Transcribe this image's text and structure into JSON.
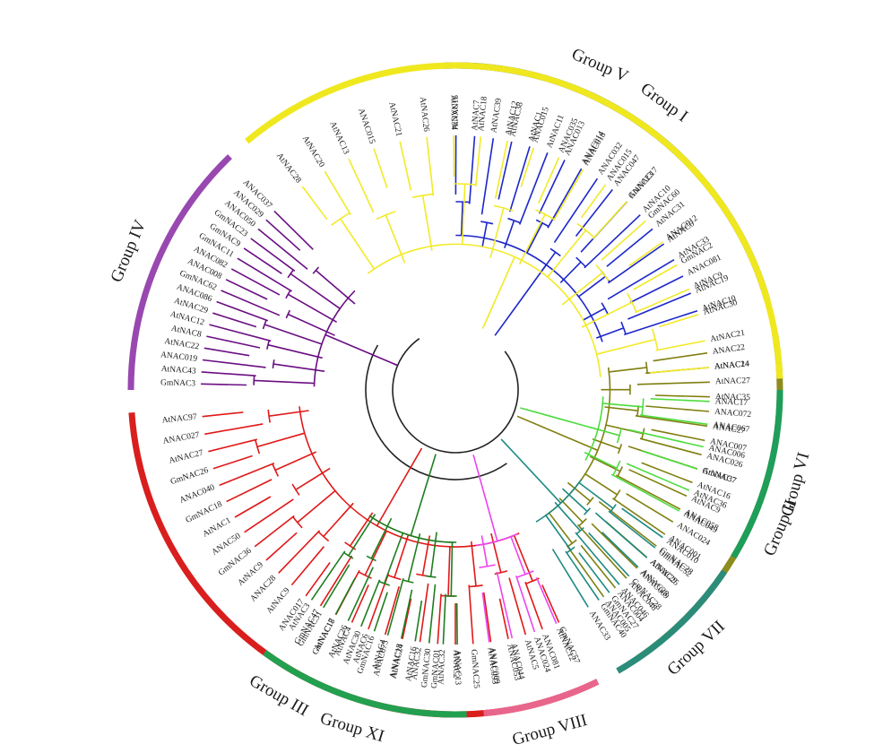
{
  "figure": {
    "groups": [
      {
        "name": "Group I",
        "color": "#3a4fc0",
        "branch": "#1d27c8",
        "leaves": [
          "AtNAC15",
          "AtNAC7",
          "AtNAC39",
          "AtNAC38",
          "AtNAC1",
          "AtNAC11",
          "ANAC013",
          "ANAC014",
          "ANAC032",
          "ANAC047",
          "ANAC23",
          "AtNAC10",
          "AtNAC31",
          "AtNAC6",
          "AtNAC33",
          "ANAC081",
          "AtNAC19",
          "AtNAC10"
        ]
      },
      {
        "name": "Group II",
        "color": "#8c8c1f",
        "branch": "#7f7f10",
        "leaves": [
          "ANAC22",
          "AtNAC24",
          "AtNAC27",
          "AtNAC35",
          "ANAC072",
          "ANAC27",
          "ANAC007",
          "ANAC026",
          "GmNAC7",
          "AtNAC16",
          "AtNAC9",
          "ANAC058",
          "ANAC024",
          "ANAC001",
          "GmNAC28",
          "ANAC29",
          "ANAC069",
          "ANAC048",
          "ANAC004",
          "ANAC005"
        ]
      },
      {
        "name": "Group III",
        "color": "#d91e1e",
        "branch": "#e01818",
        "leaves": [
          "GmNAC57",
          "ANAC081",
          "AtNAC5",
          "ANAC053",
          "ANAC009",
          "GmNAC25",
          "ANAC2",
          "GmNAC01",
          "ANAC32",
          "AtNAC24",
          "AtNAC4",
          "AtNAC6",
          "AtNAC4",
          "GmNAC18",
          "GmNAC47",
          "ANAC017",
          "AtNAC9",
          "ANAC28",
          "AtNAC9",
          "GmNAC36",
          "ANAC50",
          "AtNAC1",
          "GmNAC18",
          "ANAC040",
          "GmNAC26",
          "AtNAC27",
          "ANAC027",
          "AtNAC97"
        ]
      },
      {
        "name": "Group IV",
        "color": "#9948b0",
        "branch": "#6a0f82",
        "leaves": [
          "GmNAC3",
          "AtNAC43",
          "ANAC019",
          "AtNAC22",
          "AtNAC8",
          "AtNAC12",
          "AtNAC29",
          "ANAC086",
          "GmNAC62",
          "ANAC008",
          "ANAC082",
          "GmNAC11",
          "GmNAC9",
          "GmNAC23",
          "ANAC050",
          "ANAC029",
          "ANAC037"
        ]
      },
      {
        "name": "Group V",
        "color": "#f0e81e",
        "branch": "#f2ea28",
        "leaves": [
          "AtNAC28",
          "AtNAC20",
          "AtNAC13",
          "ANAC015",
          "AtNAC21",
          "AtNAC26",
          "AtNAC34",
          "AtNAC18",
          "AtNAC12",
          "ANAC015",
          "ANAC035",
          "ANAC018",
          "ANAC015",
          "GmNAC17",
          "GmNAC60",
          "ANAC012",
          "GmNAC2",
          "AtNAC9",
          "AtNAC30",
          "AtNAC21",
          "AtNAC14"
        ]
      },
      {
        "name": "Group VI",
        "color": "#1e9e5a",
        "branch": "#4cdc3c",
        "leaves": [
          "ANAC17",
          "ANAC067",
          "ANAC006",
          "AtNAC37",
          "AtNAC36",
          "ANAC049"
        ]
      },
      {
        "name": "Group VII",
        "color": "#2b8c7a",
        "branch": "#1e8a82",
        "leaves": [
          "ANAC010",
          "GmNAC52",
          "AtNAC25",
          "AtNAC28",
          "GmNAC28",
          "ANAC046",
          "GmNAC27",
          "GmNAC40",
          "ANAC33"
        ]
      },
      {
        "name": "Group VIII",
        "color": "#e8668c",
        "branch": "#ee44ee",
        "leaves": [
          "AtNAC12",
          "ANAC024",
          "ANAC044",
          "ANAC093"
        ]
      },
      {
        "name": "Group XI",
        "color": "#22a050",
        "branch": "#1f7d1f",
        "leaves": [
          "AtNAC13",
          "AtNAC32",
          "GmNAC30",
          "AtNAC16",
          "AtNAC18",
          "ANAC075",
          "GmNAC16",
          "AtNAC30",
          "AtNAC26",
          "AtNAC17",
          "GmNAC31",
          "AtNAC3"
        ]
      }
    ]
  }
}
